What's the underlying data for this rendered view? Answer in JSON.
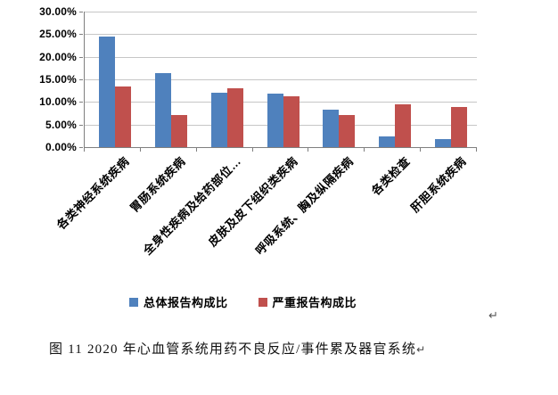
{
  "chart_data": {
    "type": "bar",
    "title": "",
    "categories": [
      "各类神经系统疾病",
      "胃肠系统疾病",
      "全身性疾病及给药部位…",
      "皮肤及皮下组织类疾病",
      "呼吸系统、胸及纵隔疾病",
      "各类检查",
      "肝胆系统疾病"
    ],
    "series": [
      {
        "name": "总体报告构成比",
        "color": "#4F81BD",
        "values": [
          24.4,
          16.3,
          12.1,
          11.9,
          8.3,
          2.3,
          1.8
        ]
      },
      {
        "name": "严重报告构成比",
        "color": "#C0504D",
        "values": [
          13.5,
          7.2,
          13.0,
          11.2,
          7.1,
          9.4,
          8.9
        ]
      }
    ],
    "xlabel": "",
    "ylabel": "",
    "ylim": [
      0,
      30
    ],
    "ytick_labels": [
      "30.00%",
      "25.00%",
      "20.00%",
      "15.00%",
      "10.00%",
      "5.00%",
      "0.00%"
    ],
    "grid": true,
    "legend_position": "bottom"
  },
  "marks": {
    "after_legend": "↵"
  },
  "caption": {
    "text": "图 11  2020 年心血管系统用药不良反应/事件累及器官系统",
    "return_mark": "↵"
  },
  "colors": {
    "grid": "#C6C6C6",
    "axis": "#7F7F7F"
  }
}
